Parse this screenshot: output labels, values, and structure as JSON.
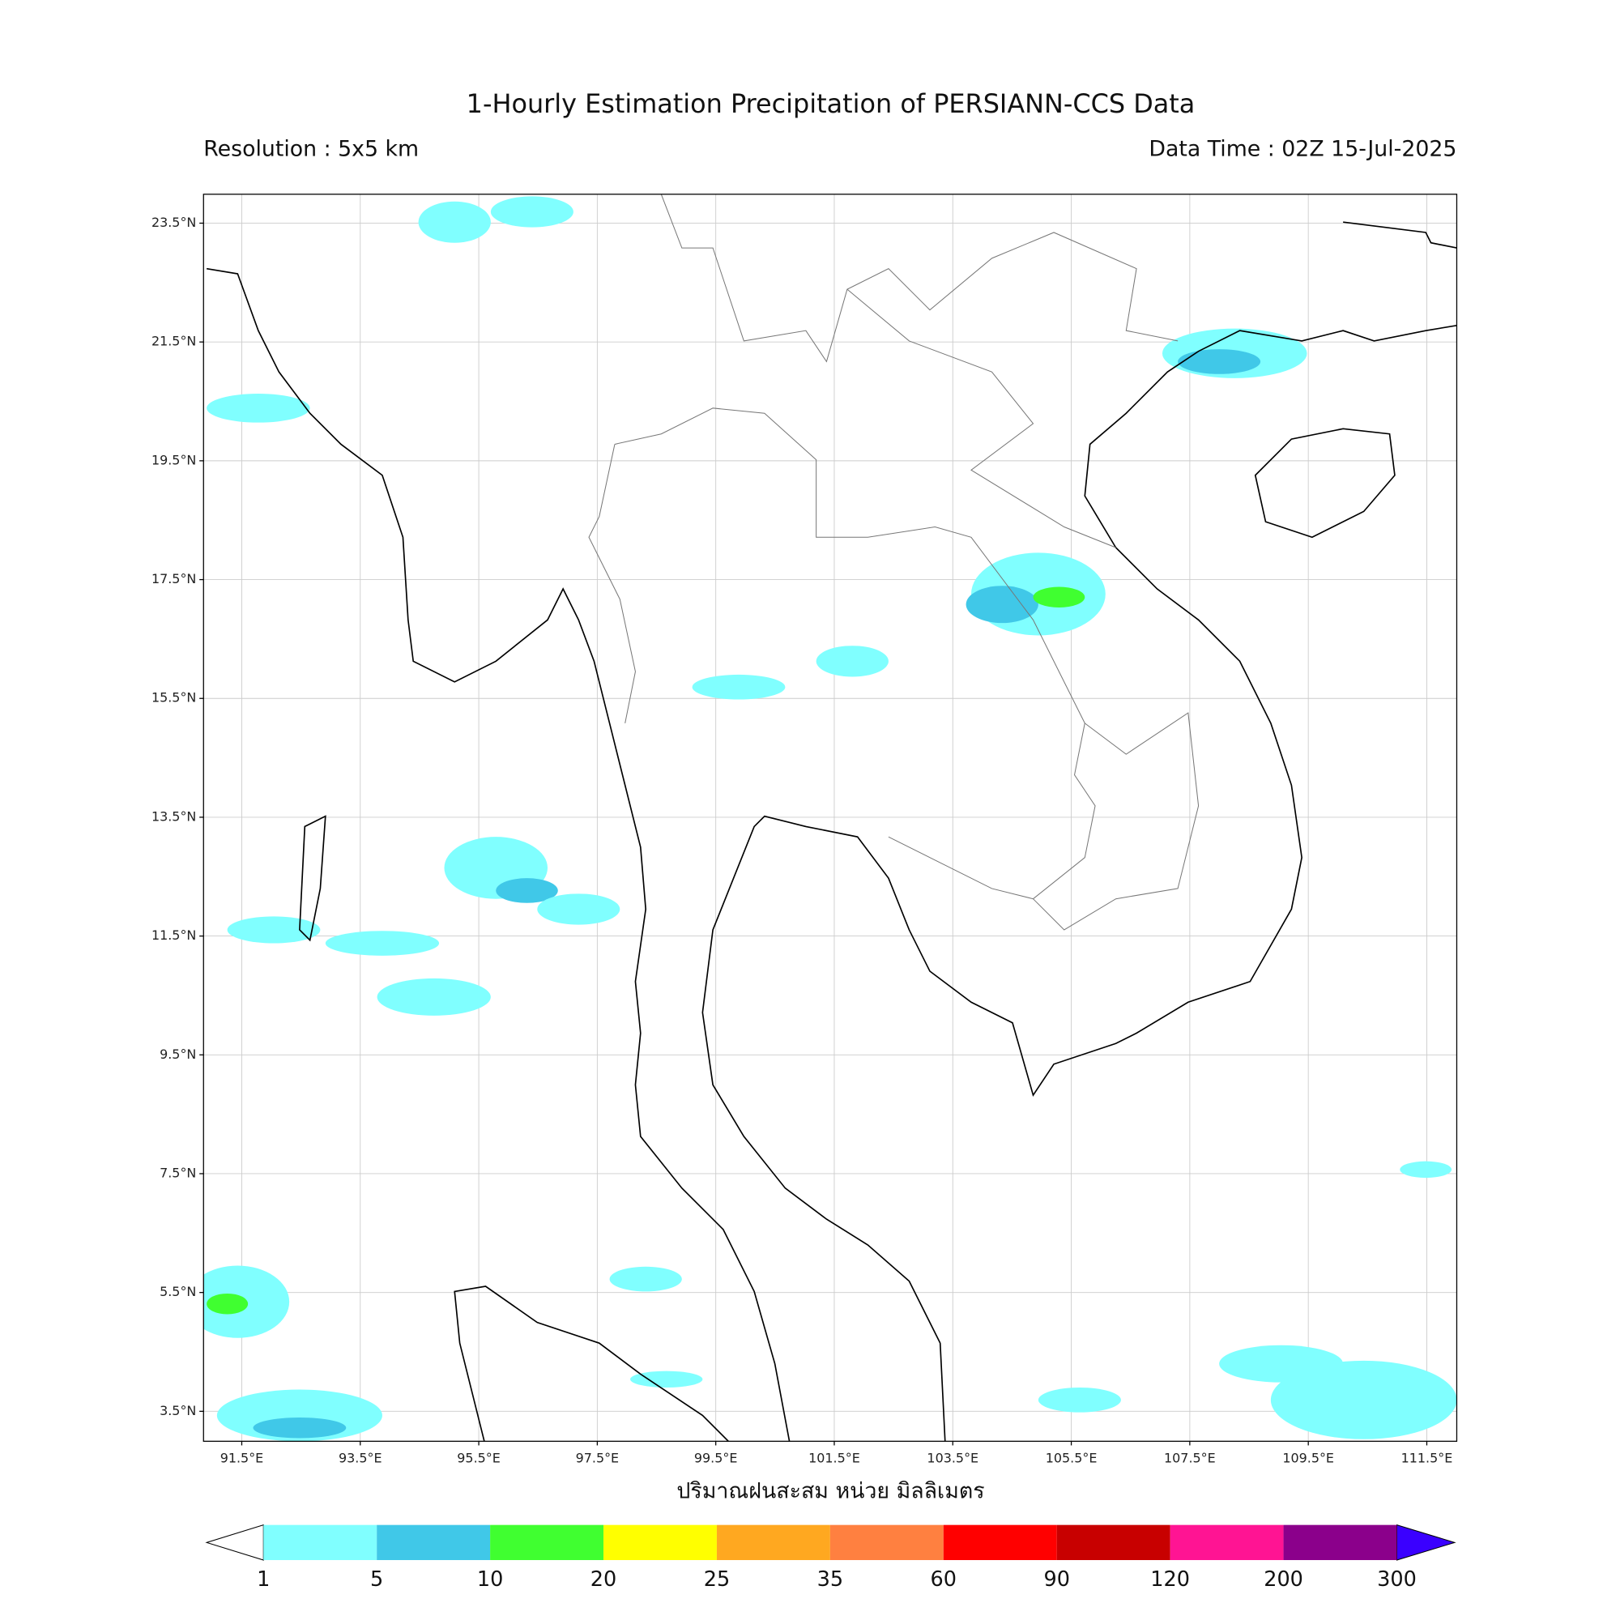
{
  "header": {
    "title": "1-Hourly Estimation Precipitation of PERSIANN-CCS Data",
    "resolution": "Resolution : 5x5 km",
    "data_time": "Data Time : 02Z 15-Jul-2025"
  },
  "map": {
    "lat_ticks": [
      {
        "value": 23.5,
        "label": "23.5°N"
      },
      {
        "value": 21.5,
        "label": "21.5°N"
      },
      {
        "value": 19.5,
        "label": "19.5°N"
      },
      {
        "value": 17.5,
        "label": "17.5°N"
      },
      {
        "value": 15.5,
        "label": "15.5°N"
      },
      {
        "value": 13.5,
        "label": "13.5°N"
      },
      {
        "value": 11.5,
        "label": "11.5°N"
      },
      {
        "value": 9.5,
        "label": "9.5°N"
      },
      {
        "value": 7.5,
        "label": "7.5°N"
      },
      {
        "value": 5.5,
        "label": "5.5°N"
      },
      {
        "value": 3.5,
        "label": "3.5°N"
      }
    ],
    "lon_ticks": [
      {
        "value": 91.5,
        "label": "91.5°E"
      },
      {
        "value": 93.5,
        "label": "93.5°E"
      },
      {
        "value": 95.5,
        "label": "95.5°E"
      },
      {
        "value": 97.5,
        "label": "97.5°E"
      },
      {
        "value": 99.5,
        "label": "99.5°E"
      },
      {
        "value": 101.5,
        "label": "101.5°E"
      },
      {
        "value": 103.5,
        "label": "103.5°E"
      },
      {
        "value": 105.5,
        "label": "105.5°E"
      },
      {
        "value": 107.5,
        "label": "107.5°E"
      },
      {
        "value": 109.5,
        "label": "109.5°E"
      },
      {
        "value": 111.5,
        "label": "111.5°E"
      }
    ],
    "xlabel": "ปริมาณฝนสะสม หน่วย มิลลิเมตร"
  },
  "colorbar": {
    "levels": [
      1,
      5,
      10,
      20,
      25,
      35,
      60,
      90,
      120,
      200,
      300
    ],
    "colors": [
      "#80ffff",
      "#40c8e8",
      "#40ff30",
      "#ffff00",
      "#ffa820",
      "#ff8040",
      "#ff0000",
      "#c80000",
      "#ff1493",
      "#8b008b"
    ],
    "under_color": "#ffffff",
    "over_color": "#3a00ff"
  }
}
